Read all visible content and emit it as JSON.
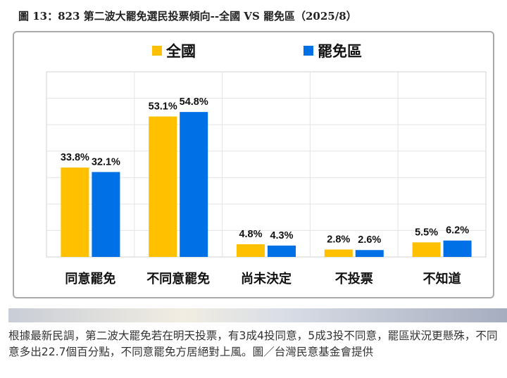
{
  "page": {
    "title": "圖 13：823 第二波大罷免選民投票傾向--全國 VS 罷免區（2025/8）",
    "caption": "根據最新民調，第二波大罷免若在明天投票，有3成4投同意，5成3投不同意，罷區狀況更懸殊，不同意多出22.7個百分點，不同意罷免方居絕對上風。圖／台灣民意基金會提供"
  },
  "legend": [
    {
      "label": "全國",
      "color": "#ffc000"
    },
    {
      "label": "罷免區",
      "color": "#0070e6"
    }
  ],
  "chart_data": {
    "type": "bar",
    "categories": [
      "同意罷免",
      "不同意罷免",
      "尚未決定",
      "不投票",
      "不知道"
    ],
    "series": [
      {
        "name": "全國",
        "color": "#ffc000",
        "values": [
          33.8,
          53.1,
          4.8,
          2.8,
          5.5
        ],
        "labels": [
          "33.8%",
          "53.1%",
          "4.8%",
          "2.8%",
          "5.5%"
        ]
      },
      {
        "name": "罷免區",
        "color": "#0070e6",
        "values": [
          32.1,
          54.8,
          4.3,
          2.6,
          6.2
        ],
        "labels": [
          "32.1%",
          "54.8%",
          "4.3%",
          "2.6%",
          "6.2%"
        ]
      }
    ],
    "ylim": [
      0,
      70
    ],
    "gridlines": true,
    "legend_position": "top"
  }
}
